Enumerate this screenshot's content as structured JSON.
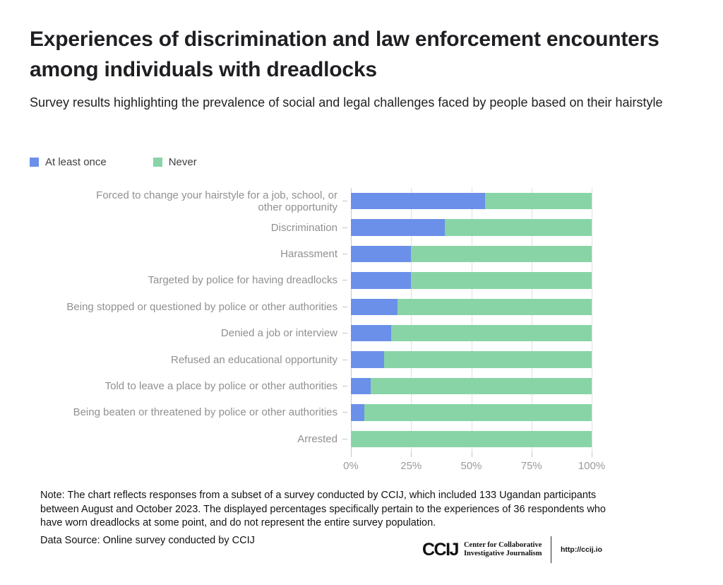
{
  "header": {
    "title": "Experiences of discrimination and law enforcement encounters among individuals with dreadlocks",
    "subtitle": "Survey results highlighting the prevalence of social and legal challenges faced by people based on their hairstyle"
  },
  "legend": [
    {
      "label": "At least once",
      "color": "#6b90ea"
    },
    {
      "label": "Never",
      "color": "#88d4a6"
    }
  ],
  "chart_data": {
    "type": "bar",
    "orientation": "horizontal",
    "stacked": true,
    "categories": [
      "Forced to change your hairstyle for a job, school, or\nother opportunity",
      "Discrimination",
      "Harassment",
      "Targeted by police for having dreadlocks",
      "Being stopped or questioned by police or other authorities",
      "Denied a job or interview",
      "Refused an educational opportunity",
      "Told to leave a place by police or other authorities",
      "Being beaten or threatened by police or other authorities",
      "Arrested"
    ],
    "series": [
      {
        "name": "At least once",
        "color": "#6b90ea",
        "values": [
          55.6,
          38.9,
          25,
          25,
          19.4,
          16.7,
          13.9,
          8.3,
          5.6,
          0
        ]
      },
      {
        "name": "Never",
        "color": "#88d4a6",
        "values": [
          44.4,
          61.1,
          75,
          75,
          80.6,
          83.3,
          86.1,
          91.7,
          94.4,
          100
        ]
      }
    ],
    "x_ticks": [
      "0%",
      "25%",
      "50%",
      "75%",
      "100%"
    ],
    "x_tick_positions": [
      0,
      25,
      50,
      75,
      100
    ],
    "xlim": [
      0,
      100
    ],
    "grid": true,
    "legend_position": "top-left"
  },
  "footer": {
    "note": "Note: The chart reflects responses from a subset of a survey conducted by CCIJ, which included 133 Ugandan participants between August and October 2023. The displayed percentages specifically pertain to the experiences of 36 respondents who have worn dreadlocks at some point, and do not represent the entire survey population.",
    "data_source": "Data Source: Online survey conducted by CCIJ",
    "logo": {
      "acronym": "CCIJ",
      "name_line1": "Center for Collaborative",
      "name_line2": "Investigative Journalism",
      "url": "http://ccij.io"
    }
  }
}
